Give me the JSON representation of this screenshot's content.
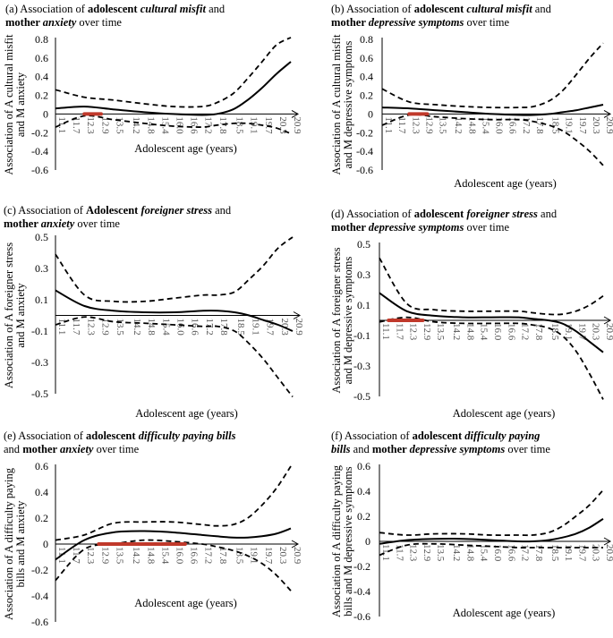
{
  "x_ticks": [
    "11.1",
    "11.7",
    "12.3",
    "12.9",
    "13.5",
    "14.2",
    "14.8",
    "15.4",
    "16.0",
    "16.6",
    "17.2",
    "17.8",
    "18.5",
    "19.1",
    "19.7",
    "20.3",
    "20.9"
  ],
  "colors": {
    "line": "#000000",
    "highlight": "#c0392b"
  },
  "panels": [
    {
      "title_parts": [
        {
          "text": "(a) Association of ",
          "bold": false,
          "italic": false
        },
        {
          "text": "adolescent ",
          "bold": true,
          "italic": false
        },
        {
          "text": "cultural misfit",
          "bold": true,
          "italic": true
        },
        {
          "text": " and",
          "bold": false,
          "italic": false
        },
        {
          "br": true
        },
        {
          "text": "mother ",
          "bold": true,
          "italic": false
        },
        {
          "text": "anxiety",
          "bold": true,
          "italic": true
        },
        {
          "text": " over time",
          "bold": false,
          "italic": false
        }
      ],
      "ylabel": [
        "Association of A cultural misfit",
        "and M anxiety"
      ],
      "xlabel": "Adolescent age (years)",
      "y_ticks": [
        "0.8",
        "0.6",
        "0.4",
        "0.2",
        "0",
        "-0.2",
        "-0.4",
        "-0.6"
      ]
    },
    {
      "title_parts": [
        {
          "text": "(b) Association of ",
          "bold": false,
          "italic": false
        },
        {
          "text": "adolescent ",
          "bold": true,
          "italic": false
        },
        {
          "text": "cultural misfit",
          "bold": true,
          "italic": true
        },
        {
          "text": " and",
          "bold": false,
          "italic": false
        },
        {
          "br": true
        },
        {
          "text": "mother ",
          "bold": true,
          "italic": false
        },
        {
          "text": "depressive symptoms",
          "bold": true,
          "italic": true
        },
        {
          "text": " over time",
          "bold": false,
          "italic": false
        }
      ],
      "ylabel": [
        "Association of A cultural misfit",
        "and M depressive symptoms"
      ],
      "xlabel": "Adolescent age (years)",
      "y_ticks": [
        "0.8",
        "0.6",
        "0.4",
        "0.2",
        "0",
        "-0.2",
        "-0.4",
        "-0.6"
      ]
    },
    {
      "title_parts": [
        {
          "text": "(c) Association of ",
          "bold": false,
          "italic": false
        },
        {
          "text": "Adolescent ",
          "bold": true,
          "italic": false
        },
        {
          "text": "foreigner stress",
          "bold": true,
          "italic": true
        },
        {
          "text": " and",
          "bold": false,
          "italic": false
        },
        {
          "br": true
        },
        {
          "text": "mother ",
          "bold": true,
          "italic": false
        },
        {
          "text": "anxiety",
          "bold": true,
          "italic": true
        },
        {
          "text": " over time",
          "bold": false,
          "italic": false
        }
      ],
      "ylabel": [
        "Association of A foreigner stress",
        "and M anxiety"
      ],
      "xlabel": "Adolescent age (years)",
      "y_ticks": [
        "0.5",
        "0.3",
        "0.1",
        "-0.1",
        "-0.3",
        "-0.5"
      ]
    },
    {
      "title_parts": [
        {
          "text": "(d) Association of ",
          "bold": false,
          "italic": false
        },
        {
          "text": "adolescent ",
          "bold": true,
          "italic": false
        },
        {
          "text": "foreigner stress",
          "bold": true,
          "italic": true
        },
        {
          "text": " and",
          "bold": false,
          "italic": false
        },
        {
          "br": true
        },
        {
          "text": "mother ",
          "bold": true,
          "italic": false
        },
        {
          "text": "depressive symptoms",
          "bold": true,
          "italic": true
        },
        {
          "text": " over time",
          "bold": false,
          "italic": false
        }
      ],
      "ylabel": [
        "Association of A foreigner stress",
        "and M depressive symptoms"
      ],
      "xlabel": "Adolescent age (years)",
      "y_ticks": [
        "0.5",
        "0.3",
        "0.1",
        "-0.1",
        "-0.3",
        "-0.5"
      ]
    },
    {
      "title_parts": [
        {
          "text": "(e) Association of ",
          "bold": false,
          "italic": false
        },
        {
          "text": "adolescent ",
          "bold": true,
          "italic": false
        },
        {
          "text": "difficulty paying bills",
          "bold": true,
          "italic": true
        },
        {
          "br": true
        },
        {
          "text": "and ",
          "bold": false,
          "italic": false
        },
        {
          "text": "mother ",
          "bold": true,
          "italic": false
        },
        {
          "text": "anxiety",
          "bold": true,
          "italic": true
        },
        {
          "text": " over time",
          "bold": false,
          "italic": false
        }
      ],
      "ylabel": [
        "Association of A difficulty paying",
        "bills and M anxiety"
      ],
      "xlabel": "Adolescent age (years)",
      "y_ticks": [
        "0.6",
        "0.4",
        "0.2",
        "0",
        "-0.2",
        "-0.4",
        "-0.6"
      ]
    },
    {
      "title_parts": [
        {
          "text": "(f) Association of ",
          "bold": false,
          "italic": false
        },
        {
          "text": "adolescent ",
          "bold": true,
          "italic": false
        },
        {
          "text": "difficulty paying",
          "bold": true,
          "italic": true
        },
        {
          "br": true
        },
        {
          "text": "bills",
          "bold": true,
          "italic": true
        },
        {
          "text": " and ",
          "bold": false,
          "italic": false
        },
        {
          "text": "mother ",
          "bold": true,
          "italic": false
        },
        {
          "text": "depressive symptoms",
          "bold": true,
          "italic": true
        },
        {
          "text": " over time",
          "bold": false,
          "italic": false
        }
      ],
      "ylabel": [
        "Association of A difficulty paying",
        "bills and M depressive symptoms"
      ],
      "xlabel": "Adolescent age (years)",
      "y_ticks": [
        "0.6",
        "0.4",
        "0.2",
        "0",
        "-0.2",
        "-0.4",
        "-0.6"
      ]
    }
  ],
  "chart_data": [
    {
      "type": "line",
      "panel": "a",
      "x": [
        11.1,
        12.3,
        13.5,
        14.8,
        16.0,
        17.2,
        17.8,
        18.5,
        19.1,
        19.7,
        20.3,
        20.9
      ],
      "ylim": [
        -0.6,
        0.8
      ],
      "series": [
        {
          "name": "estimate",
          "style": "solid",
          "values": [
            0.06,
            0.08,
            0.05,
            0.02,
            0.0,
            -0.01,
            0.0,
            0.05,
            0.15,
            0.28,
            0.43,
            0.56
          ]
        },
        {
          "name": "upper CI",
          "style": "dashed",
          "values": [
            0.26,
            0.18,
            0.15,
            0.11,
            0.08,
            0.08,
            0.12,
            0.22,
            0.38,
            0.56,
            0.74,
            0.82
          ]
        },
        {
          "name": "lower CI",
          "style": "dashed",
          "values": [
            -0.14,
            -0.02,
            -0.06,
            -0.1,
            -0.13,
            -0.14,
            -0.12,
            -0.1,
            -0.1,
            -0.12,
            -0.15,
            -0.21
          ]
        }
      ],
      "significant_range": {
        "x": [
          12.3,
          13.0
        ],
        "y": 0.0
      }
    },
    {
      "type": "line",
      "panel": "b",
      "x": [
        11.1,
        12.3,
        13.5,
        14.8,
        16.0,
        17.2,
        17.8,
        18.5,
        19.1,
        19.7,
        20.3,
        20.9
      ],
      "ylim": [
        -0.6,
        0.8
      ],
      "series": [
        {
          "name": "estimate",
          "style": "solid",
          "values": [
            0.07,
            0.06,
            0.04,
            0.02,
            0.0,
            -0.01,
            -0.01,
            0.0,
            0.02,
            0.04,
            0.07,
            0.1
          ]
        },
        {
          "name": "upper CI",
          "style": "dashed",
          "values": [
            0.27,
            0.13,
            0.1,
            0.08,
            0.07,
            0.07,
            0.08,
            0.14,
            0.25,
            0.42,
            0.6,
            0.76
          ]
        },
        {
          "name": "lower CI",
          "style": "dashed",
          "values": [
            -0.12,
            -0.01,
            -0.03,
            -0.05,
            -0.06,
            -0.06,
            -0.08,
            -0.12,
            -0.18,
            -0.28,
            -0.4,
            -0.55
          ]
        }
      ],
      "significant_range": {
        "x": [
          12.3,
          13.1
        ],
        "y": 0.0
      }
    },
    {
      "type": "line",
      "panel": "c",
      "x": [
        11.1,
        12.3,
        13.5,
        14.8,
        16.0,
        17.2,
        17.8,
        18.5,
        19.1,
        19.7,
        20.3,
        20.9
      ],
      "ylim": [
        -0.5,
        0.5
      ],
      "series": [
        {
          "name": "estimate",
          "style": "solid",
          "values": [
            0.16,
            0.06,
            0.03,
            0.02,
            0.02,
            0.03,
            0.03,
            0.02,
            0.0,
            -0.03,
            -0.06,
            -0.1
          ]
        },
        {
          "name": "upper CI",
          "style": "dashed",
          "values": [
            0.39,
            0.13,
            0.09,
            0.09,
            0.11,
            0.13,
            0.13,
            0.15,
            0.23,
            0.32,
            0.43,
            0.5
          ]
        },
        {
          "name": "lower CI",
          "style": "dashed",
          "values": [
            -0.06,
            -0.01,
            -0.04,
            -0.05,
            -0.06,
            -0.07,
            -0.07,
            -0.1,
            -0.18,
            -0.28,
            -0.4,
            -0.52
          ]
        }
      ]
    },
    {
      "type": "line",
      "panel": "d",
      "x": [
        11.1,
        12.3,
        13.5,
        14.8,
        16.0,
        17.2,
        17.8,
        18.5,
        19.1,
        19.7,
        20.3,
        20.9
      ],
      "ylim": [
        -0.5,
        0.5
      ],
      "series": [
        {
          "name": "estimate",
          "style": "solid",
          "values": [
            0.18,
            0.06,
            0.03,
            0.02,
            0.02,
            0.02,
            0.01,
            0.0,
            -0.02,
            -0.07,
            -0.14,
            -0.21
          ]
        },
        {
          "name": "upper CI",
          "style": "dashed",
          "values": [
            0.41,
            0.11,
            0.07,
            0.06,
            0.06,
            0.06,
            0.05,
            0.04,
            0.04,
            0.06,
            0.1,
            0.16
          ]
        },
        {
          "name": "lower CI",
          "style": "dashed",
          "values": [
            -0.01,
            0.02,
            -0.01,
            -0.02,
            -0.02,
            -0.02,
            -0.03,
            -0.05,
            -0.1,
            -0.2,
            -0.35,
            -0.52
          ]
        }
      ],
      "significant_range": {
        "x": [
          11.5,
          13.0
        ],
        "y": 0.0
      }
    },
    {
      "type": "line",
      "panel": "e",
      "x": [
        11.1,
        12.3,
        13.5,
        14.8,
        16.0,
        17.2,
        17.8,
        18.5,
        19.1,
        19.7,
        20.3,
        20.9
      ],
      "ylim": [
        -0.6,
        0.6
      ],
      "series": [
        {
          "name": "estimate",
          "style": "solid",
          "values": [
            -0.12,
            0.03,
            0.09,
            0.1,
            0.09,
            0.07,
            0.06,
            0.05,
            0.05,
            0.06,
            0.08,
            0.12
          ]
        },
        {
          "name": "upper CI",
          "style": "dashed",
          "values": [
            0.03,
            0.07,
            0.16,
            0.17,
            0.17,
            0.15,
            0.14,
            0.15,
            0.2,
            0.3,
            0.43,
            0.6
          ]
        },
        {
          "name": "lower CI",
          "style": "dashed",
          "values": [
            -0.28,
            -0.04,
            0.0,
            0.03,
            0.02,
            0.0,
            -0.02,
            -0.05,
            -0.09,
            -0.15,
            -0.24,
            -0.36
          ]
        }
      ],
      "significant_range": {
        "x": [
          12.9,
          16.5
        ],
        "y": 0.0
      }
    },
    {
      "type": "line",
      "panel": "f",
      "x": [
        11.1,
        12.3,
        13.5,
        14.8,
        16.0,
        17.2,
        17.8,
        18.5,
        19.1,
        19.7,
        20.3,
        20.9
      ],
      "ylim": [
        -0.6,
        0.6
      ],
      "series": [
        {
          "name": "estimate",
          "style": "solid",
          "values": [
            -0.02,
            0.01,
            0.02,
            0.02,
            0.01,
            0.0,
            0.0,
            0.01,
            0.03,
            0.06,
            0.11,
            0.18
          ]
        },
        {
          "name": "upper CI",
          "style": "dashed",
          "values": [
            0.07,
            0.05,
            0.06,
            0.06,
            0.05,
            0.05,
            0.05,
            0.07,
            0.12,
            0.2,
            0.29,
            0.41
          ]
        },
        {
          "name": "lower CI",
          "style": "dashed",
          "values": [
            -0.11,
            -0.03,
            -0.02,
            -0.03,
            -0.04,
            -0.05,
            -0.05,
            -0.05,
            -0.05,
            -0.05,
            -0.05,
            -0.05
          ]
        }
      ]
    }
  ]
}
